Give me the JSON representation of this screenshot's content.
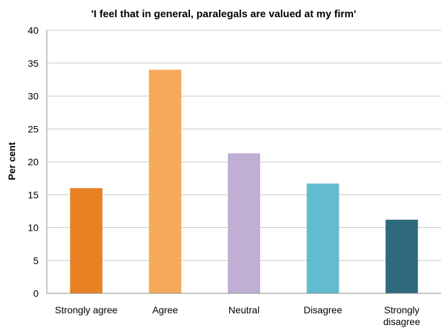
{
  "chart_data": {
    "type": "bar",
    "title": "'I feel that in general, paralegals are valued at my firm'",
    "xlabel": "",
    "ylabel": "Per cent",
    "ylim": [
      0,
      40
    ],
    "yticks": [
      0,
      5,
      10,
      15,
      20,
      25,
      30,
      35,
      40
    ],
    "grid": true,
    "legend": "none",
    "categories": [
      [
        "Strongly agree"
      ],
      [
        "Agree"
      ],
      [
        "Neutral"
      ],
      [
        "Disagree"
      ],
      [
        "Strongly",
        "disagree"
      ]
    ],
    "values": [
      16,
      34,
      21.3,
      16.7,
      11.2
    ],
    "colors": [
      "#e88124",
      "#f5a95a",
      "#bfafd2",
      "#63bbd0",
      "#2f6b7c"
    ]
  }
}
